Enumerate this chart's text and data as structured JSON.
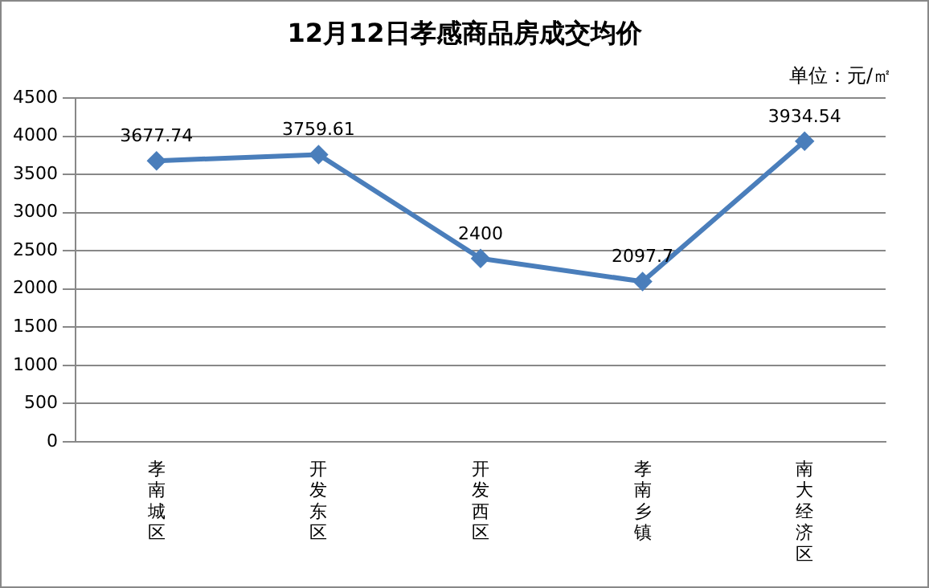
{
  "chart_data": {
    "type": "line",
    "title": "12月12日孝感商品房成交均价",
    "annotations": [
      "单位：元/㎡"
    ],
    "categories": [
      "孝南城区",
      "开发东区",
      "开发西区",
      "孝南乡镇",
      "南大经济区"
    ],
    "series": [
      {
        "color": "#4a7ebb",
        "values": [
          3677.74,
          3759.61,
          2400,
          2097.7,
          3934.54
        ]
      }
    ],
    "ylim": [
      0,
      4500
    ],
    "yticks": [
      0,
      500,
      1000,
      1500,
      2000,
      2500,
      3000,
      3500,
      4000,
      4500
    ],
    "grid": "y",
    "legend": false,
    "marker": "diamond",
    "line_style": "solid",
    "data_labels": true
  }
}
